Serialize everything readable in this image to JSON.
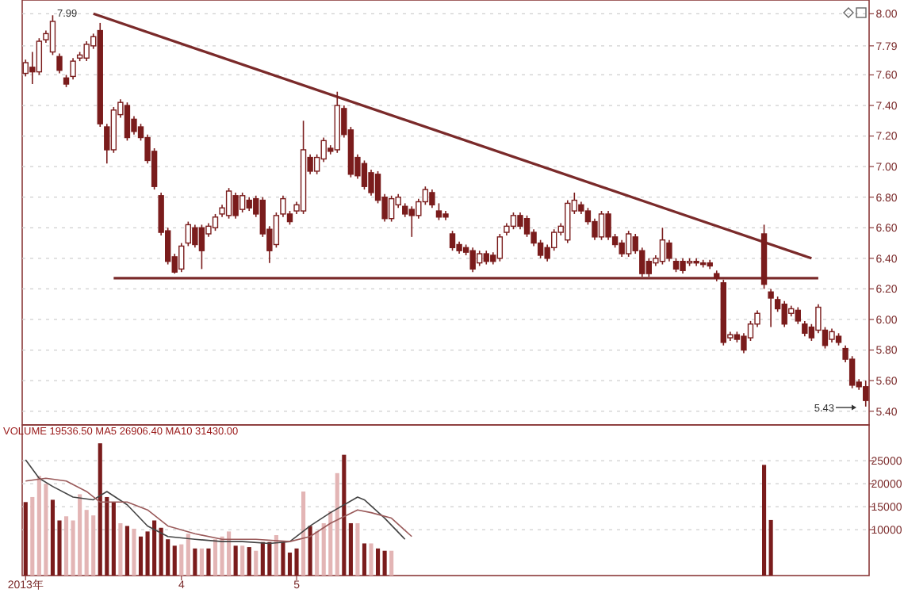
{
  "chart_data": [
    {
      "type": "candlestick",
      "ylim": [
        5.31,
        8.09
      ],
      "grid": "y",
      "tick_labels": "y",
      "color": "#7a1c1c",
      "yticks": [
        {
          "value": 8,
          "label": "8.00"
        },
        {
          "value": 7.79,
          "label": "7.79"
        },
        {
          "value": 7.6,
          "label": "7.60"
        },
        {
          "value": 7.4,
          "label": "7.40"
        },
        {
          "value": 7.2,
          "label": "7.20"
        },
        {
          "value": 7,
          "label": "7.00"
        },
        {
          "value": 6.8,
          "label": "6.80"
        },
        {
          "value": 6.6,
          "label": "6.60"
        },
        {
          "value": 6.4,
          "label": "6.40"
        },
        {
          "value": 6.2,
          "label": "6.20"
        },
        {
          "value": 6,
          "label": "6.00"
        },
        {
          "value": 5.8,
          "label": "5.80"
        },
        {
          "value": 5.6,
          "label": "5.60"
        },
        {
          "value": 5.4,
          "label": "5.40"
        }
      ],
      "annotations": [
        "7.99",
        "5.43"
      ],
      "categories": [
        null,
        null,
        null,
        null,
        null,
        null,
        null,
        null,
        null,
        null,
        null,
        null,
        null,
        null,
        null,
        null,
        null,
        null,
        null,
        null,
        null,
        null,
        null,
        null,
        null,
        null,
        null,
        null,
        null,
        null,
        null,
        null,
        null,
        null,
        null,
        null,
        null,
        null,
        null,
        null,
        null,
        null,
        null,
        null,
        null,
        null,
        null,
        null,
        null,
        null,
        null,
        null,
        null,
        null,
        null,
        null,
        null,
        null,
        null,
        null,
        null,
        null,
        null,
        null,
        null,
        null,
        null,
        null,
        null,
        null,
        null,
        null,
        null,
        null,
        null,
        null,
        null,
        null,
        null,
        null,
        null,
        null,
        null,
        null,
        null,
        null,
        null,
        null,
        null,
        null,
        null,
        null,
        null,
        null,
        null,
        null,
        null,
        null,
        null,
        null,
        null,
        null,
        null,
        null,
        null,
        null,
        null,
        null,
        null,
        null,
        null,
        null,
        null,
        null,
        null,
        null,
        null,
        null,
        null,
        null,
        null,
        null,
        null,
        null,
        null
      ],
      "ohlc": [
        [
          7.61,
          7.7,
          7.59,
          7.68
        ],
        [
          7.65,
          7.75,
          7.54,
          7.62
        ],
        [
          7.62,
          7.84,
          7.6,
          7.82
        ],
        [
          7.83,
          7.89,
          7.81,
          7.87
        ],
        [
          7.75,
          7.99,
          7.73,
          7.95
        ],
        [
          7.72,
          7.74,
          7.61,
          7.63
        ],
        [
          7.58,
          7.6,
          7.52,
          7.54
        ],
        [
          7.59,
          7.71,
          7.57,
          7.69
        ],
        [
          7.71,
          7.75,
          7.69,
          7.73
        ],
        [
          7.71,
          7.82,
          7.69,
          7.8
        ],
        [
          7.79,
          7.87,
          7.77,
          7.85
        ],
        [
          7.89,
          7.94,
          7.26,
          7.28
        ],
        [
          7.26,
          7.28,
          7.02,
          7.11
        ],
        [
          7.11,
          7.39,
          7.09,
          7.37
        ],
        [
          7.34,
          7.44,
          7.32,
          7.42
        ],
        [
          7.4,
          7.42,
          7.17,
          7.19
        ],
        [
          7.31,
          7.33,
          7.21,
          7.23
        ],
        [
          7.26,
          7.28,
          7.17,
          7.19
        ],
        [
          7.19,
          7.21,
          7.02,
          7.04
        ],
        [
          7.1,
          7.12,
          6.85,
          6.87
        ],
        [
          6.81,
          6.83,
          6.55,
          6.57
        ],
        [
          6.58,
          6.6,
          6.36,
          6.38
        ],
        [
          6.41,
          6.43,
          6.3,
          6.31
        ],
        [
          6.33,
          6.5,
          6.31,
          6.48
        ],
        [
          6.5,
          6.64,
          6.48,
          6.62
        ],
        [
          6.6,
          6.62,
          6.47,
          6.49
        ],
        [
          6.6,
          6.62,
          6.33,
          6.45
        ],
        [
          6.56,
          6.63,
          6.54,
          6.61
        ],
        [
          6.6,
          6.69,
          6.58,
          6.67
        ],
        [
          6.69,
          6.75,
          6.67,
          6.73
        ],
        [
          6.68,
          6.86,
          6.66,
          6.84
        ],
        [
          6.81,
          6.83,
          6.66,
          6.68
        ],
        [
          6.72,
          6.83,
          6.7,
          6.81
        ],
        [
          6.78,
          6.8,
          6.71,
          6.73
        ],
        [
          6.79,
          6.81,
          6.67,
          6.69
        ],
        [
          6.78,
          6.8,
          6.54,
          6.56
        ],
        [
          6.59,
          6.61,
          6.37,
          6.45
        ],
        [
          6.49,
          6.7,
          6.47,
          6.68
        ],
        [
          6.69,
          6.81,
          6.67,
          6.79
        ],
        [
          6.69,
          6.71,
          6.62,
          6.64
        ],
        [
          6.71,
          6.77,
          6.69,
          6.75
        ],
        [
          6.71,
          7.3,
          6.69,
          7.11
        ],
        [
          7.06,
          7.08,
          6.95,
          6.97
        ],
        [
          6.97,
          7.08,
          6.95,
          7.06
        ],
        [
          7.05,
          7.19,
          7.03,
          7.17
        ],
        [
          7.12,
          7.14,
          7.08,
          7.1
        ],
        [
          7.11,
          7.49,
          7.09,
          7.4
        ],
        [
          7.38,
          7.4,
          7.19,
          7.21
        ],
        [
          7.24,
          7.26,
          6.93,
          6.95
        ],
        [
          7.06,
          7.08,
          6.92,
          6.94
        ],
        [
          7.02,
          7.04,
          6.85,
          6.87
        ],
        [
          6.96,
          6.98,
          6.81,
          6.83
        ],
        [
          6.95,
          6.97,
          6.76,
          6.78
        ],
        [
          6.8,
          6.82,
          6.64,
          6.66
        ],
        [
          6.66,
          6.81,
          6.64,
          6.79
        ],
        [
          6.75,
          6.82,
          6.73,
          6.8
        ],
        [
          6.74,
          6.76,
          6.67,
          6.69
        ],
        [
          6.72,
          6.74,
          6.54,
          6.68
        ],
        [
          6.68,
          6.79,
          6.66,
          6.77
        ],
        [
          6.77,
          6.87,
          6.75,
          6.85
        ],
        [
          6.83,
          6.85,
          6.73,
          6.75
        ],
        [
          6.71,
          6.76,
          6.65,
          6.67
        ],
        [
          6.69,
          6.71,
          6.65,
          6.67
        ],
        [
          6.56,
          6.58,
          6.45,
          6.47
        ],
        [
          6.49,
          6.51,
          6.43,
          6.45
        ],
        [
          6.47,
          6.49,
          6.42,
          6.44
        ],
        [
          6.45,
          6.47,
          6.31,
          6.33
        ],
        [
          6.37,
          6.45,
          6.35,
          6.43
        ],
        [
          6.43,
          6.45,
          6.36,
          6.38
        ],
        [
          6.42,
          6.44,
          6.36,
          6.38
        ],
        [
          6.4,
          6.56,
          6.38,
          6.54
        ],
        [
          6.57,
          6.63,
          6.55,
          6.61
        ],
        [
          6.61,
          6.7,
          6.59,
          6.68
        ],
        [
          6.68,
          6.7,
          6.59,
          6.61
        ],
        [
          6.66,
          6.68,
          6.54,
          6.56
        ],
        [
          6.57,
          6.59,
          6.48,
          6.5
        ],
        [
          6.5,
          6.52,
          6.4,
          6.42
        ],
        [
          6.47,
          6.49,
          6.38,
          6.4
        ],
        [
          6.47,
          6.59,
          6.45,
          6.57
        ],
        [
          6.57,
          6.63,
          6.55,
          6.61
        ],
        [
          6.52,
          6.78,
          6.5,
          6.76
        ],
        [
          6.71,
          6.83,
          6.69,
          6.78
        ],
        [
          6.75,
          6.77,
          6.69,
          6.71
        ],
        [
          6.71,
          6.73,
          6.62,
          6.64
        ],
        [
          6.64,
          6.66,
          6.52,
          6.54
        ],
        [
          6.54,
          6.71,
          6.52,
          6.69
        ],
        [
          6.69,
          6.71,
          6.52,
          6.54
        ],
        [
          6.54,
          6.56,
          6.47,
          6.49
        ],
        [
          6.5,
          6.52,
          6.41,
          6.43
        ],
        [
          6.43,
          6.58,
          6.41,
          6.56
        ],
        [
          6.54,
          6.56,
          6.43,
          6.45
        ],
        [
          6.45,
          6.47,
          6.28,
          6.3
        ],
        [
          6.38,
          6.4,
          6.28,
          6.3
        ],
        [
          6.37,
          6.42,
          6.35,
          6.4
        ],
        [
          6.38,
          6.6,
          6.36,
          6.52
        ],
        [
          6.5,
          6.52,
          6.38,
          6.4
        ],
        [
          6.38,
          6.4,
          6.31,
          6.33
        ],
        [
          6.38,
          6.4,
          6.3,
          6.32
        ],
        [
          6.37,
          6.4,
          6.35,
          6.38
        ],
        [
          6.38,
          6.4,
          6.35,
          6.37
        ],
        [
          6.37,
          6.39,
          6.34,
          6.36
        ],
        [
          6.37,
          6.39,
          6.33,
          6.35
        ],
        [
          6.3,
          6.32,
          6.25,
          6.27
        ],
        [
          6.24,
          6.26,
          5.83,
          5.85
        ],
        [
          5.88,
          5.92,
          5.86,
          5.9
        ],
        [
          5.9,
          5.92,
          5.85,
          5.87
        ],
        [
          5.89,
          5.91,
          5.78,
          5.8
        ],
        [
          5.88,
          5.99,
          5.86,
          5.97
        ],
        [
          5.97,
          6.06,
          5.95,
          6.04
        ],
        [
          6.56,
          6.62,
          6.2,
          6.23
        ],
        [
          6.18,
          6.2,
          5.95,
          6.14
        ],
        [
          6.13,
          6.15,
          6.05,
          6.07
        ],
        [
          6.1,
          6.12,
          5.95,
          5.97
        ],
        [
          6.04,
          6.09,
          6.02,
          6.07
        ],
        [
          6.06,
          6.08,
          5.97,
          5.99
        ],
        [
          5.97,
          5.99,
          5.89,
          5.91
        ],
        [
          5.95,
          5.97,
          5.86,
          5.88
        ],
        [
          5.93,
          6.1,
          5.91,
          6.08
        ],
        [
          5.93,
          5.95,
          5.81,
          5.83
        ],
        [
          5.87,
          5.94,
          5.85,
          5.92
        ],
        [
          5.89,
          5.91,
          5.83,
          5.85
        ],
        [
          5.81,
          5.83,
          5.72,
          5.74
        ],
        [
          5.74,
          5.76,
          5.55,
          5.57
        ],
        [
          5.59,
          5.61,
          5.54,
          5.56
        ],
        [
          5.56,
          5.6,
          5.43,
          5.47
        ]
      ],
      "series": [
        {
          "type": "line",
          "color": "#7a2a2a",
          "values": [
            null,
            null,
            null,
            null,
            null,
            null,
            null,
            null,
            null,
            null,
            8.0,
            null,
            null,
            null,
            null,
            null,
            null,
            null,
            null,
            null,
            null,
            null,
            null,
            null,
            null,
            null,
            null,
            null,
            null,
            null,
            null,
            null,
            null,
            null,
            null,
            null,
            null,
            null,
            null,
            null,
            null,
            null,
            null,
            null,
            null,
            null,
            null,
            null,
            null,
            null,
            null,
            null,
            null,
            null,
            null,
            null,
            null,
            null,
            null,
            null,
            null,
            null,
            null,
            null,
            null,
            null,
            null,
            null,
            null,
            null,
            null,
            null,
            null,
            null,
            null,
            null,
            null,
            null,
            null,
            null,
            null,
            null,
            null,
            null,
            null,
            null,
            null,
            null,
            null,
            null,
            null,
            null,
            null,
            null,
            null,
            null,
            null,
            null,
            null,
            null,
            null,
            null,
            null,
            null,
            null,
            null,
            null,
            null,
            null,
            null,
            null,
            null,
            null,
            null,
            null,
            null,
            6.4,
            null,
            null,
            null,
            null,
            null,
            null,
            null,
            null
          ]
        },
        {
          "type": "line",
          "color": "#7a2a2a",
          "values": [
            null,
            null,
            null,
            null,
            null,
            null,
            null,
            null,
            null,
            null,
            null,
            null,
            null,
            6.27,
            null,
            null,
            null,
            null,
            null,
            null,
            null,
            null,
            null,
            null,
            null,
            null,
            null,
            null,
            null,
            null,
            null,
            null,
            null,
            null,
            null,
            null,
            null,
            null,
            null,
            null,
            null,
            null,
            null,
            null,
            null,
            null,
            null,
            null,
            null,
            null,
            null,
            null,
            null,
            null,
            null,
            null,
            null,
            null,
            null,
            null,
            null,
            null,
            null,
            null,
            null,
            null,
            null,
            null,
            null,
            null,
            null,
            null,
            null,
            null,
            null,
            null,
            null,
            null,
            null,
            null,
            null,
            null,
            null,
            null,
            null,
            null,
            null,
            null,
            null,
            null,
            null,
            null,
            null,
            null,
            null,
            null,
            null,
            null,
            null,
            null,
            null,
            null,
            null,
            null,
            null,
            null,
            null,
            null,
            null,
            null,
            null,
            null,
            null,
            null,
            null,
            null,
            null,
            6.27,
            null,
            null,
            null,
            null,
            null,
            null,
            null
          ]
        }
      ]
    },
    {
      "type": "bar",
      "title": "VOLUME 19536.50 MA5 26906.40 MA10 31430.00",
      "ylim": [
        0,
        32800
      ],
      "grid": "y",
      "yticks": [
        10000,
        15000,
        20000,
        25000
      ],
      "categories": [
        "2013年",
        null,
        null,
        null,
        null,
        null,
        null,
        null,
        null,
        null,
        null,
        null,
        null,
        null,
        null,
        null,
        null,
        null,
        null,
        null,
        null,
        null,
        null,
        "4",
        null,
        null,
        null,
        null,
        null,
        null,
        null,
        null,
        null,
        null,
        null,
        null,
        null,
        null,
        null,
        null,
        "5",
        null,
        null,
        null,
        null,
        null,
        null,
        null,
        null,
        null,
        null,
        null,
        null,
        null,
        null,
        null,
        null,
        null,
        null,
        null,
        null,
        null,
        null,
        null,
        null,
        null,
        null,
        null,
        null,
        null,
        null,
        null,
        null,
        null,
        null,
        null,
        null,
        null,
        null,
        null,
        null,
        null,
        null,
        null,
        null,
        null,
        null,
        null,
        null,
        null,
        null,
        null,
        null,
        null,
        null,
        null,
        null,
        null,
        null,
        null,
        null,
        null,
        null,
        null,
        null,
        null,
        null,
        null,
        null,
        null,
        null,
        null,
        null,
        null,
        null,
        null,
        null,
        null,
        null,
        null,
        null,
        null,
        null,
        null,
        null
      ],
      "series": [
        {
          "type": "bar",
          "values": [
            16000,
            17100,
            21700,
            20000,
            16500,
            12000,
            12900,
            12000,
            17700,
            14300,
            13100,
            28800,
            17100,
            16000,
            11400,
            10800,
            10200,
            8500,
            9600,
            12000,
            10400,
            7900,
            6500,
            6800,
            9100,
            5900,
            5900,
            5900,
            7900,
            8500,
            9600,
            6500,
            6500,
            6200,
            5400,
            7300,
            7300,
            8800,
            7300,
            5000,
            5900,
            18300,
            10800,
            9600,
            11400,
            14000,
            22300,
            26300,
            11400,
            11400,
            7000,
            7000,
            5900,
            5400,
            5400,
            null,
            null,
            null,
            null,
            null,
            null,
            null,
            null,
            null,
            null,
            null,
            null,
            null,
            null,
            null,
            null,
            null,
            null,
            null,
            null,
            null,
            null,
            null,
            null,
            null,
            null,
            null,
            null,
            null,
            null,
            null,
            null,
            null,
            null,
            null,
            null,
            null,
            null,
            null,
            null,
            null,
            null,
            null,
            null,
            null,
            null,
            null,
            null,
            null,
            null,
            null,
            null,
            null,
            null,
            24100,
            12100,
            null,
            null,
            null,
            null,
            null,
            null,
            null,
            null,
            null,
            null,
            null,
            null,
            null,
            null
          ],
          "colors": [
            "#7a1c1c",
            "#e3b5b5",
            "#e3b5b5",
            "#e3b5b5",
            "#7a1c1c",
            "#7a1c1c",
            "#e3b5b5",
            "#e3b5b5",
            "#e3b5b5",
            "#e3b5b5",
            "#e3b5b5",
            "#7a1c1c",
            "#7a1c1c",
            "#7a1c1c",
            "#e3b5b5",
            "#7a1c1c",
            "#e3b5b5",
            "#7a1c1c",
            "#7a1c1c",
            "#7a1c1c",
            "#7a1c1c",
            "#7a1c1c",
            "#7a1c1c",
            "#e3b5b5",
            "#e3b5b5",
            "#7a1c1c",
            "#e3b5b5",
            "#7a1c1c",
            "#e3b5b5",
            "#e3b5b5",
            "#e3b5b5",
            "#7a1c1c",
            "#e3b5b5",
            "#7a1c1c",
            "#e3b5b5",
            "#7a1c1c",
            "#7a1c1c",
            "#e3b5b5",
            "#7a1c1c",
            "#7a1c1c",
            "#7a1c1c",
            "#e3b5b5",
            "#7a1c1c",
            "#e3b5b5",
            "#e3b5b5",
            "#e3b5b5",
            "#e3b5b5",
            "#7a1c1c",
            "#7a1c1c",
            "#e3b5b5",
            "#7a1c1c",
            "#e3b5b5",
            "#7a1c1c",
            "#7a1c1c",
            "#e3b5b5",
            null,
            null,
            null,
            null,
            null,
            null,
            null,
            null,
            null,
            null,
            null,
            null,
            null,
            null,
            null,
            null,
            null,
            null,
            null,
            null,
            null,
            null,
            null,
            null,
            null,
            null,
            null,
            null,
            null,
            null,
            null,
            null,
            null,
            null,
            null,
            null,
            null,
            null,
            null,
            null,
            null,
            null,
            null,
            null,
            null,
            null,
            null,
            null,
            null,
            null,
            null,
            null,
            null,
            null,
            "#7a1c1c",
            "#7a1c1c",
            null,
            null,
            null,
            null,
            null,
            null,
            null,
            null,
            null,
            null,
            null,
            null,
            null,
            null
          ]
        },
        {
          "type": "line",
          "color": "#444444",
          "values": [
            25200,
            null,
            21200,
            null,
            19400,
            null,
            null,
            17100,
            null,
            null,
            16500,
            null,
            18300,
            null,
            null,
            15400,
            null,
            null,
            10800,
            null,
            null,
            8500,
            null,
            null,
            null,
            7900,
            null,
            null,
            null,
            7400,
            null,
            null,
            7400,
            null,
            null,
            null,
            7000,
            null,
            null,
            7400,
            null,
            null,
            10800,
            null,
            null,
            13700,
            null,
            null,
            null,
            17100,
            16500,
            null,
            null,
            12500,
            null,
            null,
            7900,
            null,
            null,
            null,
            null,
            null,
            null,
            null,
            null,
            null,
            null,
            null,
            null,
            null,
            null,
            null,
            null,
            null,
            null,
            null,
            null,
            null,
            null,
            null,
            null,
            null,
            null,
            null,
            null,
            null,
            null,
            null,
            null,
            null,
            null,
            null,
            null,
            null,
            null,
            null,
            null,
            null,
            null,
            null,
            null,
            null,
            null,
            null,
            null,
            null,
            null,
            null,
            null,
            null,
            null,
            null,
            null,
            null,
            null,
            null,
            null,
            null,
            null,
            null,
            null,
            null,
            null,
            null,
            null
          ]
        },
        {
          "type": "line",
          "color": "#9a5a5a",
          "values": [
            20600,
            null,
            null,
            21200,
            null,
            null,
            20600,
            null,
            null,
            18300,
            null,
            16000,
            null,
            null,
            null,
            16000,
            null,
            null,
            14300,
            null,
            null,
            10800,
            null,
            null,
            null,
            9100,
            null,
            null,
            null,
            7900,
            null,
            null,
            null,
            null,
            7900,
            null,
            null,
            null,
            null,
            7400,
            null,
            null,
            8500,
            null,
            null,
            11400,
            null,
            null,
            null,
            14300,
            null,
            13700,
            null,
            null,
            12500,
            null,
            null,
            8500,
            null,
            null,
            null,
            null,
            null,
            null,
            null,
            null,
            null,
            null,
            null,
            null,
            null,
            null,
            null,
            null,
            null,
            null,
            null,
            null,
            null,
            null,
            null,
            null,
            null,
            null,
            null,
            null,
            null,
            null,
            null,
            null,
            null,
            null,
            null,
            null,
            null,
            null,
            null,
            null,
            null,
            null,
            null,
            null,
            null,
            null,
            null,
            null,
            null,
            null,
            null,
            null,
            null,
            null,
            null,
            null,
            null,
            null,
            null,
            null,
            null,
            null,
            null,
            null,
            null,
            null,
            null
          ]
        }
      ]
    }
  ]
}
